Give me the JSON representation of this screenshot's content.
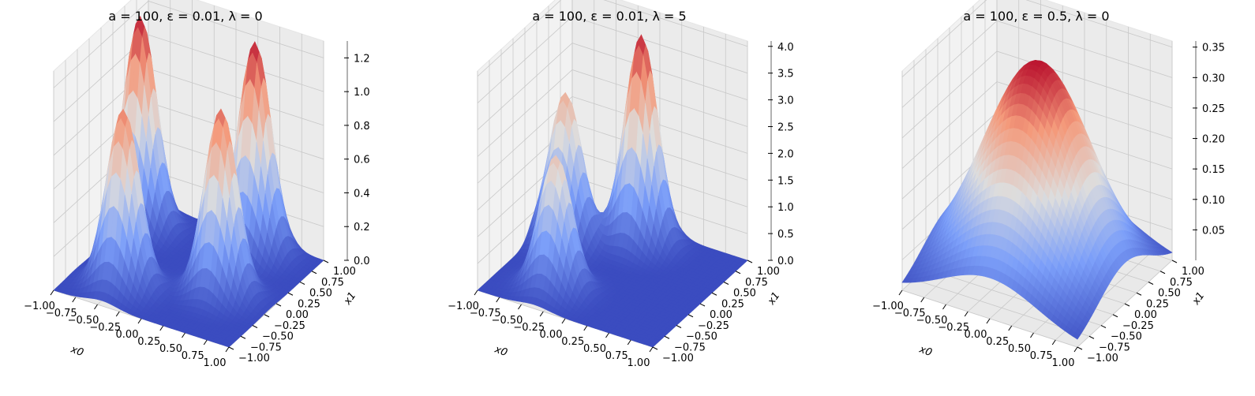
{
  "chart_data": [
    {
      "type": "surface3d",
      "title": "a = 100,  ε = 0.01,  λ = 0",
      "xlabel": "x0",
      "ylabel": "x1",
      "zlabel": "",
      "xlim": [
        -1,
        1
      ],
      "ylim": [
        -1,
        1
      ],
      "zlim": [
        0,
        1.3
      ],
      "x_ticks": [
        "−1.00",
        "−0.75",
        "−0.50",
        "−0.25",
        "0.00",
        "0.25",
        "0.50",
        "0.75",
        "1.00"
      ],
      "y_ticks": [
        "−1.00",
        "−0.75",
        "−0.50",
        "−0.25",
        "0.00",
        "0.25",
        "0.50",
        "0.75",
        "1.00"
      ],
      "z_ticks": [
        "0.0",
        "0.2",
        "0.4",
        "0.6",
        "0.8",
        "1.0",
        "1.2"
      ],
      "z_tick_values": [
        0,
        0.2,
        0.4,
        0.6,
        0.8,
        1.0,
        1.2
      ],
      "colormap": "coolwarm",
      "peaks": [
        {
          "x0": -0.85,
          "x1": 0.55,
          "height": 1.25
        },
        {
          "x0": -0.45,
          "x1": -0.55,
          "height": 1.05
        },
        {
          "x0": 0.35,
          "x1": 0.75,
          "height": 1.25
        },
        {
          "x0": 0.45,
          "x1": -0.15,
          "height": 1.1
        }
      ]
    },
    {
      "type": "surface3d",
      "title": "a = 100,  ε = 0.01,  λ = 5",
      "xlabel": "x0",
      "ylabel": "x1",
      "zlabel": "",
      "xlim": [
        -1,
        1
      ],
      "ylim": [
        -1,
        1
      ],
      "zlim": [
        0,
        4.1
      ],
      "x_ticks": [
        "−1.00",
        "−0.75",
        "−0.50",
        "−0.25",
        "0.00",
        "0.25",
        "0.50",
        "0.75",
        "1.00"
      ],
      "y_ticks": [
        "−1.00",
        "−0.75",
        "−0.50",
        "−0.25",
        "0.00",
        "0.25",
        "0.50",
        "0.75",
        "1.00"
      ],
      "z_ticks": [
        "0.0",
        "0.5",
        "1.0",
        "1.5",
        "2.0",
        "2.5",
        "3.0",
        "3.5",
        "4.0"
      ],
      "z_tick_values": [
        0,
        0.5,
        1,
        1.5,
        2,
        2.5,
        3,
        3.5,
        4
      ],
      "colormap": "coolwarm",
      "peaks": [
        {
          "x0": -0.7,
          "x1": 0.3,
          "height": 2.8
        },
        {
          "x0": -0.35,
          "x1": -0.55,
          "height": 2.5
        },
        {
          "x0": -0.05,
          "x1": 0.7,
          "height": 3.9
        }
      ]
    },
    {
      "type": "surface3d",
      "title": "a = 100,  ε = 0.5,  λ = 0",
      "xlabel": "x0",
      "ylabel": "x1",
      "zlabel": "",
      "xlim": [
        -1,
        1
      ],
      "ylim": [
        -1,
        1
      ],
      "zlim": [
        0.0,
        0.36
      ],
      "x_ticks": [
        "−1.00",
        "−0.75",
        "−0.50",
        "−0.25",
        "0.00",
        "0.25",
        "0.50",
        "0.75",
        "1.00"
      ],
      "y_ticks": [
        "−1.00",
        "−0.75",
        "−0.50",
        "−0.25",
        "0.00",
        "0.25",
        "0.50",
        "0.75",
        "1.00"
      ],
      "z_ticks": [
        "0.05",
        "0.10",
        "0.15",
        "0.20",
        "0.25",
        "0.30",
        "0.35"
      ],
      "z_tick_values": [
        0.05,
        0.1,
        0.15,
        0.2,
        0.25,
        0.3,
        0.35
      ],
      "colormap": "coolwarm",
      "peaks": [
        {
          "x0": 0.0,
          "x1": 0.0,
          "height": 0.35,
          "spread": "broad"
        }
      ]
    }
  ]
}
